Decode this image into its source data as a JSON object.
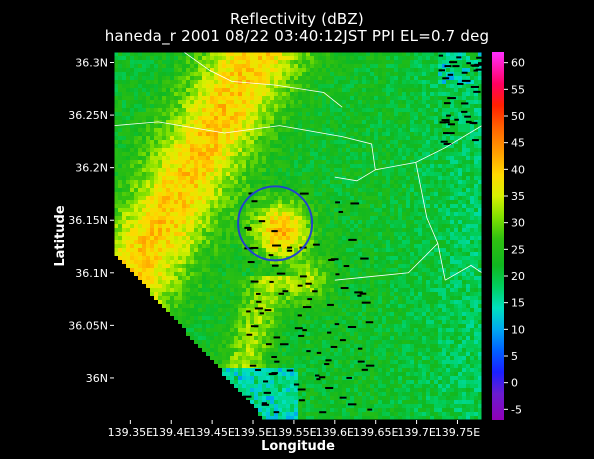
{
  "title": {
    "line1": "Reflectivity (dBZ)",
    "line2": "haneda_r 2001 08/22 03:40:12JST PPI EL=0.7 deg"
  },
  "map": {
    "x_axis": {
      "label": "Longitude",
      "ticks": [
        "139.35E",
        "139.4E",
        "139.45E",
        "139.5E",
        "139.55E",
        "139.6E",
        "139.65E",
        "139.7E",
        "139.75E"
      ],
      "range": [
        139.33,
        139.78
      ]
    },
    "y_axis": {
      "label": "Latitude",
      "ticks": [
        "36.3N",
        "36.25N",
        "36.2N",
        "36.15N",
        "36.1N",
        "36.05N",
        "36N"
      ],
      "range": [
        35.96,
        36.31
      ]
    },
    "highlight_circle": {
      "center_lon": 139.527,
      "center_lat": 36.147,
      "color": "#2244cc"
    },
    "coastline_color": "#ffffff"
  },
  "colorbar": {
    "ticks": [
      "60",
      "55",
      "50",
      "45",
      "40",
      "35",
      "30",
      "25",
      "20",
      "15",
      "10",
      "5",
      "0",
      "-5"
    ],
    "range_dbz": [
      -7,
      62
    ],
    "stops": [
      {
        "dbz": -7,
        "color": "#9000b8"
      },
      {
        "dbz": -2,
        "color": "#6a1cd0"
      },
      {
        "dbz": 2,
        "color": "#1a20ff"
      },
      {
        "dbz": 6,
        "color": "#0060ff"
      },
      {
        "dbz": 10,
        "color": "#00a8f0"
      },
      {
        "dbz": 14,
        "color": "#00e0c0"
      },
      {
        "dbz": 18,
        "color": "#00d060"
      },
      {
        "dbz": 22,
        "color": "#10b820"
      },
      {
        "dbz": 27,
        "color": "#30c010"
      },
      {
        "dbz": 31,
        "color": "#80e000"
      },
      {
        "dbz": 35,
        "color": "#d8f000"
      },
      {
        "dbz": 39,
        "color": "#ffd800"
      },
      {
        "dbz": 43,
        "color": "#ffa000"
      },
      {
        "dbz": 48,
        "color": "#ff6000"
      },
      {
        "dbz": 52,
        "color": "#ff2000"
      },
      {
        "dbz": 56,
        "color": "#ff0060"
      },
      {
        "dbz": 62,
        "color": "#ff30ff"
      }
    ]
  }
}
